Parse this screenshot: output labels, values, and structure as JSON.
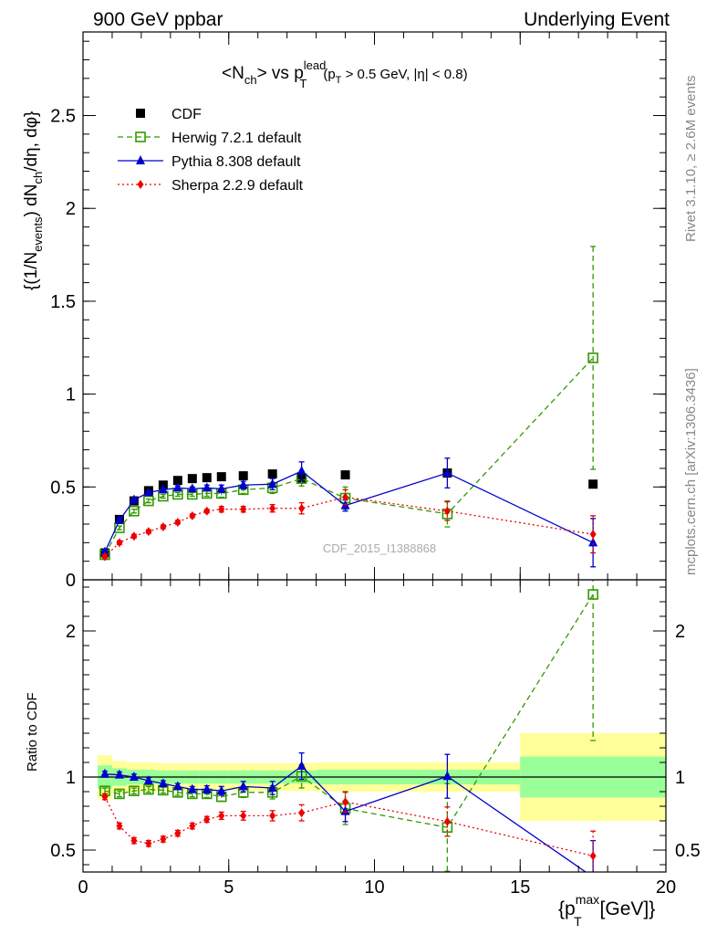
{
  "header": {
    "left": "900 GeV ppbar",
    "right": "Underlying Event"
  },
  "side": {
    "rivet": "Rivet 3.1.10, ≥ 2.6M events",
    "mcplots": "mcplots.cern.ch [arXiv:1306.3436]"
  },
  "chart_data": {
    "type": "line",
    "title_parts": {
      "a": "<N",
      "a_sub": "ch",
      "b": "> vs p",
      "b_sup": "lead",
      "b_sub": "T",
      "c": "(p",
      "c_sub": "T",
      "d": " > 0.5 GeV, |η| < 0.8)"
    },
    "ylabel_parts": {
      "a": "{(1/N",
      "a_sub": "events",
      "b": ") dN",
      "b_sub": "ch",
      "c": "/dη, dφ}"
    },
    "xlabel_parts": {
      "a": "{p",
      "a_sup": "max",
      "a_sub": "T",
      "b": " [GeV]}"
    },
    "ratio_ylabel": "Ratio to CDF",
    "watermark": "CDF_2015_I1388868",
    "xlim": [
      0,
      20
    ],
    "main_ylim": [
      0,
      2.95
    ],
    "ratio_ylim": [
      0.35,
      2.35
    ],
    "main_yticks": [
      "0",
      "0.5",
      "1",
      "1.5",
      "2",
      "2.5"
    ],
    "main_ytick_values": [
      0,
      0.5,
      1,
      1.5,
      2,
      2.5
    ],
    "ratio_yticks": [
      "0.5",
      "1",
      "2"
    ],
    "ratio_ytick_values": [
      0.5,
      1,
      2
    ],
    "xticks": [
      "0",
      "5",
      "10",
      "15",
      "20"
    ],
    "xtick_values": [
      0,
      5,
      10,
      15,
      20
    ],
    "legend_position": "top-left",
    "x": [
      0.75,
      1.25,
      1.75,
      2.25,
      2.75,
      3.25,
      3.75,
      4.25,
      4.75,
      5.5,
      6.5,
      7.5,
      9.0,
      12.5,
      17.5
    ],
    "bins": [
      [
        0.5,
        1.0
      ],
      [
        1.0,
        1.5
      ],
      [
        1.5,
        2.0
      ],
      [
        2.0,
        2.5
      ],
      [
        2.5,
        3.0
      ],
      [
        3.0,
        3.5
      ],
      [
        3.5,
        4.0
      ],
      [
        4.0,
        4.5
      ],
      [
        4.5,
        5.0
      ],
      [
        5.0,
        6.0
      ],
      [
        6.0,
        7.0
      ],
      [
        7.0,
        8.0
      ],
      [
        8.0,
        10.0
      ],
      [
        10.0,
        15.0
      ],
      [
        15.0,
        20.0
      ]
    ],
    "data": {
      "name": "CDF",
      "values": [
        0.145,
        0.325,
        0.425,
        0.48,
        0.51,
        0.535,
        0.545,
        0.55,
        0.555,
        0.56,
        0.57,
        0.545,
        0.565,
        0.575,
        0.515
      ],
      "band_inner": [
        0.08,
        0.06,
        0.05,
        0.05,
        0.045,
        0.045,
        0.045,
        0.045,
        0.045,
        0.045,
        0.045,
        0.045,
        0.05,
        0.05,
        0.14
      ],
      "band_outer": [
        0.15,
        0.11,
        0.1,
        0.1,
        0.095,
        0.095,
        0.095,
        0.095,
        0.095,
        0.095,
        0.095,
        0.095,
        0.1,
        0.1,
        0.3
      ]
    },
    "series": [
      {
        "name": "Herwig 7.2.1 default",
        "color": "#339900",
        "dash": "6,4",
        "marker": "open-square",
        "values": [
          0.135,
          0.28,
          0.37,
          0.425,
          0.45,
          0.46,
          0.46,
          0.465,
          0.465,
          0.485,
          0.495,
          0.545,
          0.44,
          0.355,
          1.195
        ],
        "errors": [
          0.01,
          0.01,
          0.01,
          0.01,
          0.01,
          0.01,
          0.01,
          0.015,
          0.02,
          0.02,
          0.03,
          0.04,
          0.06,
          0.07,
          0.6
        ],
        "ratio": [
          0.905,
          0.885,
          0.905,
          0.915,
          0.91,
          0.895,
          0.885,
          0.885,
          0.865,
          0.895,
          0.895,
          1.005,
          0.785,
          0.655,
          2.25
        ],
        "ratio_errors": [
          0.02,
          0.02,
          0.02,
          0.02,
          0.02,
          0.02,
          0.02,
          0.025,
          0.03,
          0.035,
          0.045,
          0.08,
          0.11,
          0.3,
          1.0
        ]
      },
      {
        "name": "Pythia 8.308 default",
        "color": "#0000cc",
        "dash": "",
        "marker": "filled-triangle",
        "values": [
          0.15,
          0.32,
          0.43,
          0.47,
          0.485,
          0.495,
          0.49,
          0.495,
          0.49,
          0.51,
          0.515,
          0.585,
          0.4,
          0.575,
          0.2
        ],
        "errors": [
          0.01,
          0.01,
          0.01,
          0.01,
          0.01,
          0.01,
          0.01,
          0.015,
          0.02,
          0.02,
          0.03,
          0.05,
          0.03,
          0.08,
          0.13
        ],
        "ratio": [
          1.02,
          1.015,
          1.0,
          0.975,
          0.955,
          0.935,
          0.915,
          0.915,
          0.905,
          0.935,
          0.925,
          1.075,
          0.765,
          1.005,
          0.315
        ],
        "ratio_errors": [
          0.02,
          0.02,
          0.02,
          0.02,
          0.02,
          0.02,
          0.02,
          0.025,
          0.03,
          0.035,
          0.045,
          0.09,
          0.07,
          0.15,
          0.25
        ]
      },
      {
        "name": "Sherpa 2.2.9 default",
        "color": "#ee0000",
        "dash": "2,3",
        "marker": "filled-diamond",
        "values": [
          0.125,
          0.2,
          0.235,
          0.26,
          0.285,
          0.31,
          0.345,
          0.37,
          0.38,
          0.38,
          0.385,
          0.385,
          0.445,
          0.37,
          0.245
        ],
        "errors": [
          0.01,
          0.01,
          0.01,
          0.01,
          0.01,
          0.01,
          0.01,
          0.01,
          0.015,
          0.015,
          0.02,
          0.03,
          0.04,
          0.05,
          0.1
        ],
        "ratio": [
          0.865,
          0.665,
          0.565,
          0.545,
          0.575,
          0.615,
          0.665,
          0.71,
          0.735,
          0.735,
          0.735,
          0.755,
          0.83,
          0.695,
          0.46
        ],
        "ratio_errors": [
          0.02,
          0.02,
          0.02,
          0.02,
          0.02,
          0.02,
          0.02,
          0.02,
          0.025,
          0.03,
          0.035,
          0.055,
          0.07,
          0.1,
          0.17
        ]
      }
    ]
  }
}
